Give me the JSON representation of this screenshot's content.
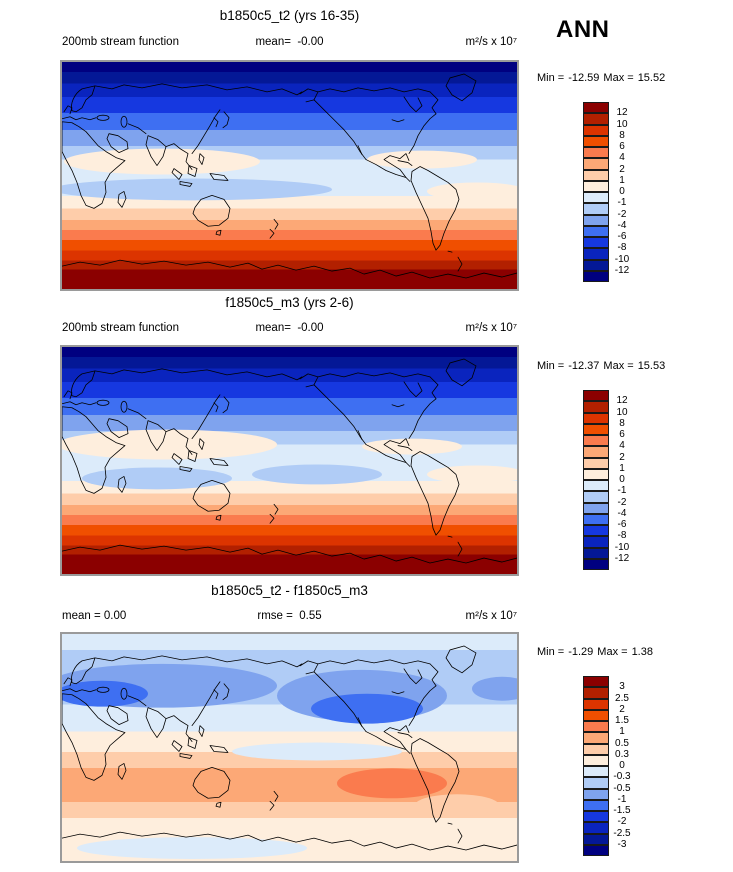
{
  "header": {
    "season": "ANN"
  },
  "colorbar_colors": [
    "#8B0000",
    "#B22000",
    "#DC3400",
    "#F04F00",
    "#FA7B4E",
    "#FCA876",
    "#FECDAA",
    "#FEEEDD",
    "#DCEBFA",
    "#B0CCF6",
    "#7FA3EE",
    "#3E6FF2",
    "#1638E0",
    "#0A24BE",
    "#041896",
    "#000080"
  ],
  "panels": [
    {
      "title": "b1850c5_t2 (yrs 16-35)",
      "label_left": "200mb stream function",
      "label_center": "mean=  -0.00",
      "units": "m²/s x 10⁷",
      "stats": {
        "min_label": "Min =",
        "min": "-12.59",
        "max_label": "Max =",
        "max": "15.52"
      },
      "ticks": [
        "12",
        "10",
        "8",
        "6",
        "4",
        "2",
        "1",
        "0",
        "-1",
        "-2",
        "-4",
        "-6",
        "-8",
        "-10",
        "-12"
      ]
    },
    {
      "title": "f1850c5_m3 (yrs 2-6)",
      "label_left": "200mb stream function",
      "label_center": "mean=  -0.00",
      "units": "m²/s x 10⁷",
      "stats": {
        "min_label": "Min =",
        "min": "-12.37",
        "max_label": "Max =",
        "max": "15.53"
      },
      "ticks": [
        "12",
        "10",
        "8",
        "6",
        "4",
        "2",
        "1",
        "0",
        "-1",
        "-2",
        "-4",
        "-6",
        "-8",
        "-10",
        "-12"
      ]
    },
    {
      "title": "b1850c5_t2 - f1850c5_m3",
      "label_left": "mean =  0.00",
      "label_center": "rmse =  0.55",
      "units": "m²/s x 10⁷",
      "stats": {
        "min_label": "Min =",
        "min": "-1.29",
        "max_label": "Max =",
        "max": "1.38"
      },
      "ticks": [
        "3",
        "2.5",
        "2",
        "1.5",
        "1",
        "0.5",
        "0.3",
        "0",
        "-0.3",
        "-0.5",
        "-1",
        "-1.5",
        "-2",
        "-2.5",
        "-3"
      ]
    }
  ],
  "chart_data": [
    {
      "type": "heatmap",
      "subtype": "filled-contour-world-map",
      "title": "b1850c5_t2 (yrs 16-35)",
      "variable": "200mb stream function",
      "units": "m²/s x 10⁷",
      "season": "ANN",
      "mean": -0.0,
      "min": -12.59,
      "max": 15.52,
      "contour_levels": [
        -12,
        -10,
        -8,
        -6,
        -4,
        -2,
        -1,
        0,
        1,
        2,
        4,
        6,
        8,
        10,
        12
      ],
      "palette": "blue (negative) to white to red (positive), 16 bands",
      "projection": "equirectangular, lon 0E-360E left to right, lat 90N top to 90S bottom",
      "pattern": "zonally banded: dark blue (< -12) across Arctic, bands weakening to near zero at ~25N, pale band with weak positive cell over N Africa-India, weak negative band south of equator, then increasingly positive southward reaching dark red (> 12) around Antarctica"
    },
    {
      "type": "heatmap",
      "subtype": "filled-contour-world-map",
      "title": "f1850c5_m3 (yrs 2-6)",
      "variable": "200mb stream function",
      "units": "m²/s x 10⁷",
      "season": "ANN",
      "mean": -0.0,
      "min": -12.37,
      "max": 15.53,
      "contour_levels": [
        -12,
        -10,
        -8,
        -6,
        -4,
        -2,
        -1,
        0,
        1,
        2,
        4,
        6,
        8,
        10,
        12
      ],
      "palette": "blue (negative) to white to red (positive), 16 bands",
      "projection": "equirectangular, lon 0E-360E left to right, lat 90N top to 90S bottom",
      "pattern": "same zonal structure as case 1: strong negative over northern high latitudes, weak positive cell over Africa/India, weak negative cells just south of equator, strong positive toward Antarctica"
    },
    {
      "type": "heatmap",
      "subtype": "filled-contour-difference-map",
      "title": "b1850c5_t2 - f1850c5_m3",
      "units": "m²/s x 10⁷",
      "season": "ANN",
      "mean": 0.0,
      "rmse": 0.55,
      "min": -1.29,
      "max": 1.38,
      "contour_levels": [
        -3,
        -2.5,
        -2,
        -1.5,
        -1,
        -0.5,
        -0.3,
        0,
        0.3,
        0.5,
        1,
        1.5,
        2,
        2.5,
        3
      ],
      "palette": "blue (negative) to white to red (positive), 16 bands",
      "projection": "equirectangular, lon 0E-360E left to right, lat 90N top to 90S bottom",
      "pattern": "negative (blue) band across NH mid-latitudes with strongest cell (~ -1) over eastern North America / Gulf of Mexico and Europe; positive (orange) band across SH subtropics with strongest cell (~ +1) in southeast Pacific west of South America; weak values near equator and poles, light blue patch over Antarctica"
    }
  ]
}
